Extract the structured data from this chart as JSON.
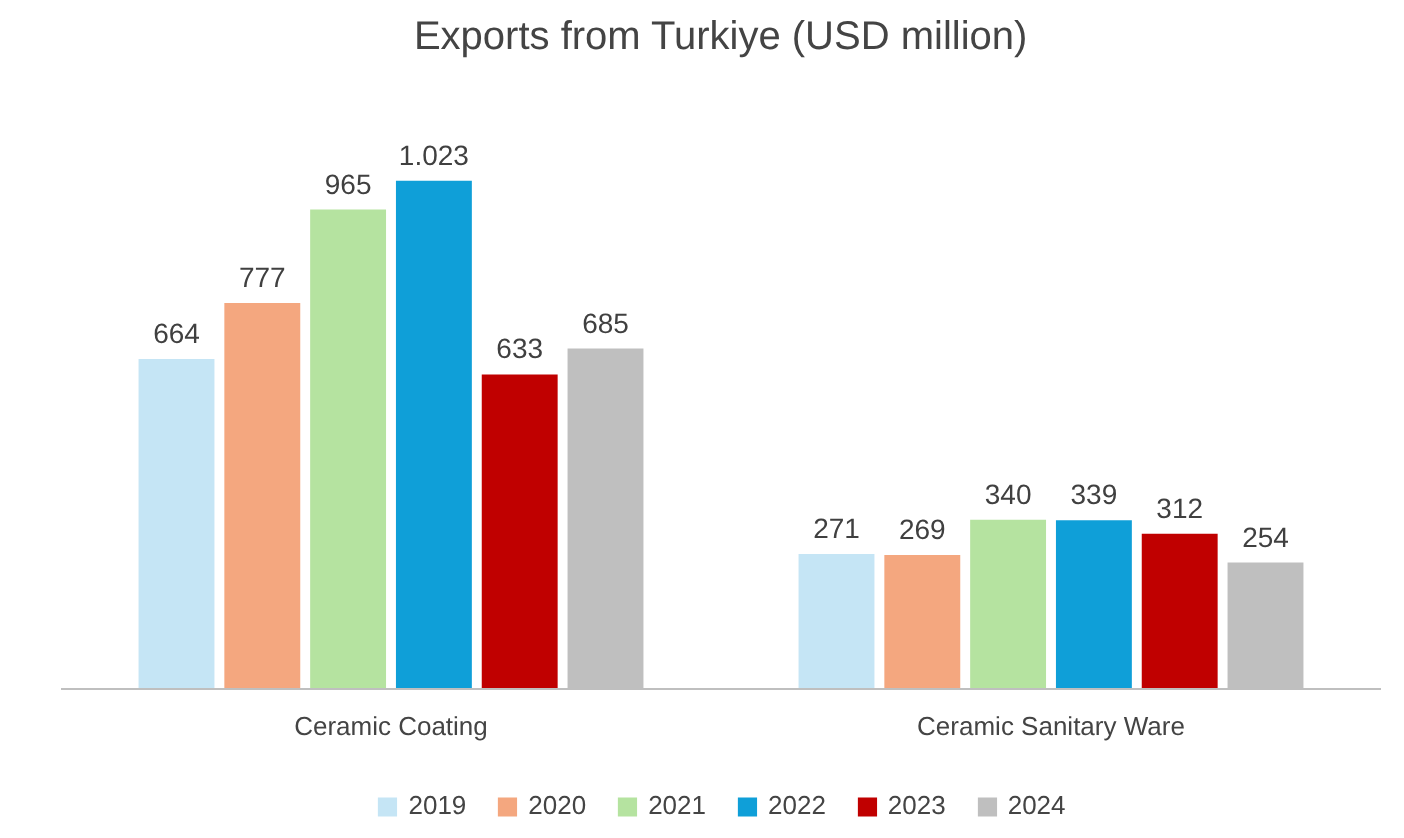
{
  "chart_data": {
    "type": "bar",
    "title": "Exports from Turkiye (USD million)",
    "categories": [
      "Ceramic Coating",
      "Ceramic Sanitary Ware"
    ],
    "series": [
      {
        "name": "2019",
        "color": "#c5e5f5",
        "values": [
          664,
          271
        ],
        "value_labels": [
          "664",
          "271"
        ]
      },
      {
        "name": "2020",
        "color": "#f4a77f",
        "values": [
          777,
          269
        ],
        "value_labels": [
          "777",
          "269"
        ]
      },
      {
        "name": "2021",
        "color": "#b5e3a0",
        "values": [
          965,
          340
        ],
        "value_labels": [
          "965",
          "340"
        ]
      },
      {
        "name": "2022",
        "color": "#0f9fd8",
        "values": [
          1023,
          339
        ],
        "value_labels": [
          "1.023",
          "339"
        ]
      },
      {
        "name": "2023",
        "color": "#c00000",
        "values": [
          633,
          312
        ],
        "value_labels": [
          "633",
          "312"
        ]
      },
      {
        "name": "2024",
        "color": "#bfbfbf",
        "values": [
          685,
          254
        ],
        "value_labels": [
          "685",
          "254"
        ]
      }
    ],
    "legend": "bottom"
  }
}
